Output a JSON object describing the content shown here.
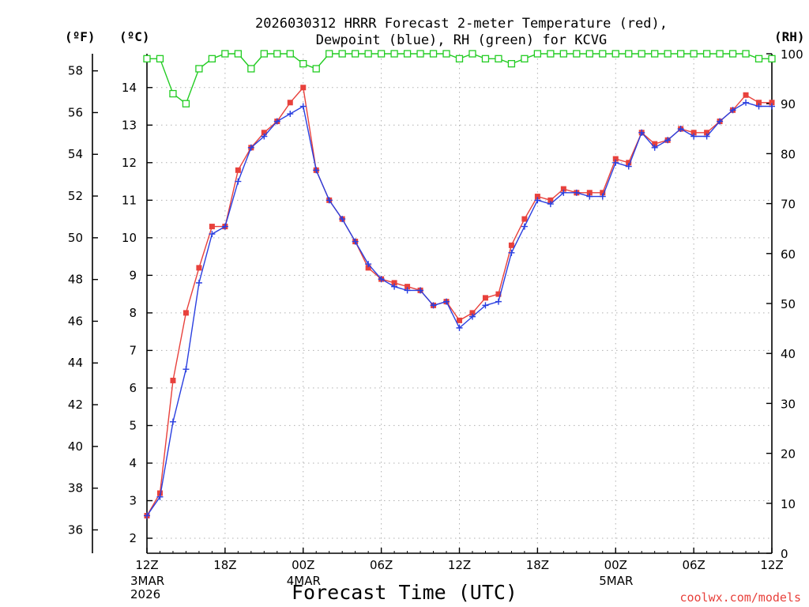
{
  "title_line1": "2026030312 HRRR Forecast 2-meter Temperature (red),",
  "title_line2": "Dewpoint (blue), RH (green) for KCVG",
  "units": {
    "left_f": "(ºF)",
    "left_c": "(ºC)",
    "right_rh": "(RH)"
  },
  "xlabel": "Forecast Time (UTC)",
  "credit": "coolwx.com/models",
  "colors": {
    "temperature": "#e8413c",
    "dewpoint": "#2a3fe0",
    "rh": "#22cc22"
  },
  "chart_data": {
    "type": "line",
    "title": "2026030312 HRRR Forecast 2-meter Temperature (red), Dewpoint (blue), RH (green) for KCVG",
    "xlabel": "Forecast Time (UTC)",
    "x_hours": [
      0,
      1,
      2,
      3,
      4,
      5,
      6,
      7,
      8,
      9,
      10,
      11,
      12,
      13,
      14,
      15,
      16,
      17,
      18,
      19,
      20,
      21,
      22,
      23,
      24,
      25,
      26,
      27,
      28,
      29,
      30,
      31,
      32,
      33,
      34,
      35,
      36,
      37,
      38,
      39,
      40,
      41,
      42,
      43,
      44,
      45,
      46,
      47,
      48
    ],
    "x_ticks": [
      {
        "hour": 0,
        "label": "12Z",
        "sub": [
          "3MAR",
          "2026"
        ]
      },
      {
        "hour": 6,
        "label": "18Z",
        "sub": []
      },
      {
        "hour": 12,
        "label": "00Z",
        "sub": [
          "4MAR"
        ]
      },
      {
        "hour": 18,
        "label": "06Z",
        "sub": []
      },
      {
        "hour": 24,
        "label": "12Z",
        "sub": []
      },
      {
        "hour": 30,
        "label": "18Z",
        "sub": []
      },
      {
        "hour": 36,
        "label": "00Z",
        "sub": [
          "5MAR"
        ]
      },
      {
        "hour": 42,
        "label": "06Z",
        "sub": []
      },
      {
        "hour": 48,
        "label": "12Z",
        "sub": []
      }
    ],
    "xlim": [
      0,
      48
    ],
    "y_celsius": {
      "ylim": [
        1.6,
        14.9
      ],
      "ticks": [
        2,
        3,
        4,
        5,
        6,
        7,
        8,
        9,
        10,
        11,
        12,
        13,
        14
      ]
    },
    "y_fahrenheit": {
      "ticks": [
        36,
        38,
        40,
        42,
        44,
        46,
        48,
        50,
        52,
        54,
        56,
        58
      ]
    },
    "y_rh": {
      "ylim": [
        0,
        100
      ],
      "ticks": [
        0,
        10,
        20,
        30,
        40,
        50,
        60,
        70,
        80,
        90,
        100
      ]
    },
    "grid": true,
    "series": [
      {
        "name": "Temperature",
        "axis": "celsius",
        "marker": "square",
        "values": [
          2.6,
          3.2,
          6.2,
          8.0,
          9.2,
          10.3,
          10.3,
          11.8,
          12.4,
          12.8,
          13.1,
          13.6,
          14.0,
          11.8,
          11.0,
          10.5,
          9.9,
          9.2,
          8.9,
          8.8,
          8.7,
          8.6,
          8.2,
          8.3,
          7.8,
          8.0,
          8.4,
          8.5,
          9.8,
          10.5,
          11.1,
          11.0,
          11.3,
          11.2,
          11.2,
          11.2,
          12.1,
          12.0,
          12.8,
          12.5,
          12.6,
          12.9,
          12.8,
          12.8,
          13.1,
          13.4,
          13.8,
          13.6,
          13.6
        ]
      },
      {
        "name": "Dewpoint",
        "axis": "celsius",
        "marker": "plus",
        "values": [
          2.6,
          3.1,
          5.1,
          6.5,
          8.8,
          10.1,
          10.3,
          11.5,
          12.4,
          12.7,
          13.1,
          13.3,
          13.5,
          11.8,
          11.0,
          10.5,
          9.9,
          9.3,
          8.9,
          8.7,
          8.6,
          8.6,
          8.2,
          8.3,
          7.6,
          7.9,
          8.2,
          8.3,
          9.6,
          10.3,
          11.0,
          10.9,
          11.2,
          11.2,
          11.1,
          11.1,
          12.0,
          11.9,
          12.8,
          12.4,
          12.6,
          12.9,
          12.7,
          12.7,
          13.1,
          13.4,
          13.6,
          13.5,
          13.5
        ]
      },
      {
        "name": "RH",
        "axis": "rh",
        "marker": "square-open",
        "values": [
          99,
          99,
          92,
          90,
          97,
          99,
          100,
          100,
          97,
          100,
          100,
          100,
          98,
          97,
          100,
          100,
          100,
          100,
          100,
          100,
          100,
          100,
          100,
          100,
          99,
          100,
          99,
          99,
          98,
          99,
          100,
          100,
          100,
          100,
          100,
          100,
          100,
          100,
          100,
          100,
          100,
          100,
          100,
          100,
          100,
          100,
          100,
          99,
          99
        ]
      }
    ]
  }
}
